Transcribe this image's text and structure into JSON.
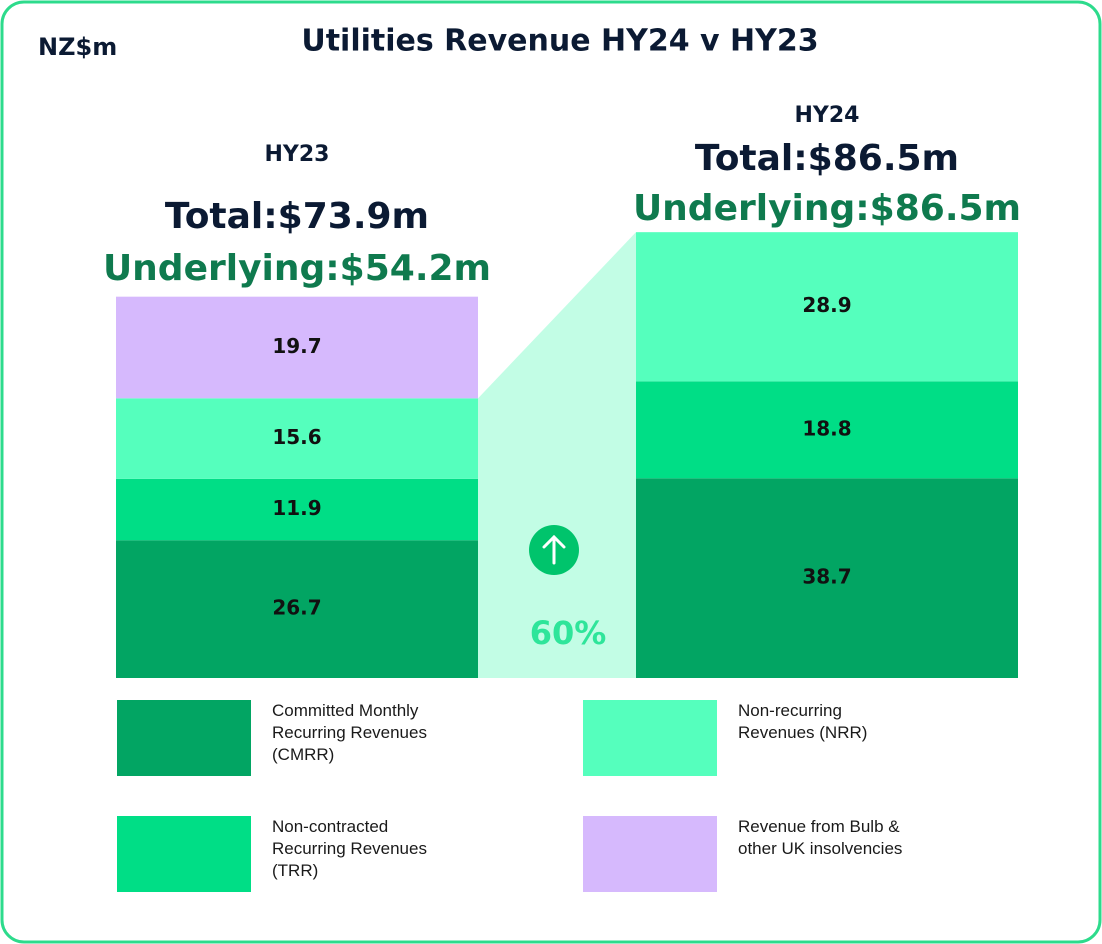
{
  "chart_data": {
    "type": "bar",
    "stacked": true,
    "title": "Utilities Revenue HY24 v HY23",
    "unit_label": "NZ$m",
    "categories": [
      "HY23",
      "HY24"
    ],
    "totals": [
      "Total:$73.9m",
      "Total:$86.5m"
    ],
    "underlying": [
      "Underlying:$54.2m",
      "Underlying:$86.5m"
    ],
    "series": [
      {
        "name": "Committed Monthly Recurring Revenues (CMRR)",
        "color": "#02a563",
        "values": [
          26.7,
          38.7
        ]
      },
      {
        "name": "Non-contracted Recurring Revenues (TRR)",
        "color": "#00de86",
        "values": [
          11.9,
          18.8
        ]
      },
      {
        "name": "Non-recurring Revenues (NRR)",
        "color": "#55ffbd",
        "values": [
          15.6,
          28.9
        ]
      },
      {
        "name": "Revenue from Bulb & other UK insolvencies",
        "color": "#d6b9fd",
        "values": [
          19.7,
          null
        ]
      }
    ],
    "annotation": "60%"
  }
}
